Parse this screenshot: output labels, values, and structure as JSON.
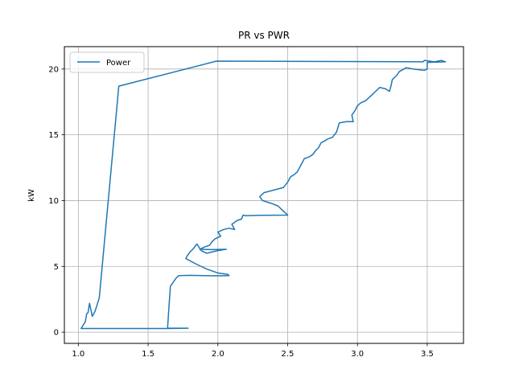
{
  "chart_data": {
    "type": "line",
    "title": "PR vs PWR",
    "xlabel": "",
    "ylabel": "kW",
    "xlim": [
      0.9,
      3.76
    ],
    "ylim": [
      -0.85,
      21.7
    ],
    "xticks": [
      1.0,
      1.5,
      2.0,
      2.5,
      3.0,
      3.5
    ],
    "yticks": [
      0,
      5,
      10,
      15,
      20
    ],
    "grid": true,
    "legend_position": "top-left",
    "series": [
      {
        "name": "Power",
        "color": "#1f77b4",
        "points": [
          [
            1.79,
            0.3
          ],
          [
            1.65,
            0.28
          ],
          [
            1.02,
            0.28
          ],
          [
            1.05,
            0.8
          ],
          [
            1.06,
            1.4
          ],
          [
            1.07,
            1.5
          ],
          [
            1.08,
            2.2
          ],
          [
            1.1,
            1.2
          ],
          [
            1.12,
            1.6
          ],
          [
            1.15,
            2.6
          ],
          [
            1.29,
            18.7
          ],
          [
            1.99,
            20.6
          ],
          [
            3.47,
            20.55
          ],
          [
            3.48,
            20.65
          ],
          [
            3.55,
            20.55
          ],
          [
            3.6,
            20.65
          ],
          [
            3.63,
            20.55
          ],
          [
            3.5,
            20.5
          ],
          [
            3.5,
            20.0
          ],
          [
            3.48,
            19.9
          ],
          [
            3.4,
            20.0
          ],
          [
            3.35,
            20.1
          ],
          [
            3.3,
            19.8
          ],
          [
            3.28,
            19.5
          ],
          [
            3.25,
            19.2
          ],
          [
            3.24,
            18.7
          ],
          [
            3.23,
            18.3
          ],
          [
            3.2,
            18.5
          ],
          [
            3.16,
            18.6
          ],
          [
            3.13,
            18.3
          ],
          [
            3.1,
            18.0
          ],
          [
            3.06,
            17.6
          ],
          [
            3.02,
            17.4
          ],
          [
            3.0,
            17.2
          ],
          [
            2.98,
            16.8
          ],
          [
            2.96,
            16.5
          ],
          [
            2.97,
            16.0
          ],
          [
            2.92,
            16.0
          ],
          [
            2.87,
            15.9
          ],
          [
            2.85,
            15.2
          ],
          [
            2.82,
            14.8
          ],
          [
            2.79,
            14.7
          ],
          [
            2.76,
            14.5
          ],
          [
            2.74,
            14.4
          ],
          [
            2.72,
            14.0
          ],
          [
            2.7,
            13.8
          ],
          [
            2.68,
            13.5
          ],
          [
            2.65,
            13.3
          ],
          [
            2.62,
            13.2
          ],
          [
            2.6,
            12.8
          ],
          [
            2.57,
            12.2
          ],
          [
            2.55,
            12.0
          ],
          [
            2.52,
            11.8
          ],
          [
            2.5,
            11.4
          ],
          [
            2.47,
            11.0
          ],
          [
            2.4,
            10.8
          ],
          [
            2.33,
            10.6
          ],
          [
            2.3,
            10.3
          ],
          [
            2.32,
            10.0
          ],
          [
            2.38,
            9.8
          ],
          [
            2.43,
            9.6
          ],
          [
            2.46,
            9.3
          ],
          [
            2.5,
            8.9
          ],
          [
            2.3,
            8.88
          ],
          [
            2.2,
            8.85
          ],
          [
            2.18,
            8.9
          ],
          [
            2.17,
            8.6
          ],
          [
            2.14,
            8.5
          ],
          [
            2.1,
            8.2
          ],
          [
            2.12,
            7.8
          ],
          [
            2.08,
            7.9
          ],
          [
            2.04,
            7.8
          ],
          [
            2.0,
            7.6
          ],
          [
            2.02,
            7.3
          ],
          [
            1.98,
            7.1
          ],
          [
            1.96,
            6.9
          ],
          [
            1.94,
            6.6
          ],
          [
            1.91,
            6.5
          ],
          [
            1.87,
            6.3
          ],
          [
            1.95,
            6.28
          ],
          [
            2.06,
            6.3
          ],
          [
            2.0,
            6.2
          ],
          [
            1.92,
            6.0
          ],
          [
            1.88,
            6.2
          ],
          [
            1.85,
            6.7
          ],
          [
            1.82,
            6.3
          ],
          [
            1.8,
            6.1
          ],
          [
            1.78,
            5.8
          ],
          [
            1.77,
            5.6
          ],
          [
            1.84,
            5.2
          ],
          [
            1.92,
            4.8
          ],
          [
            2.0,
            4.5
          ],
          [
            2.07,
            4.4
          ],
          [
            2.08,
            4.3
          ],
          [
            2.0,
            4.28
          ],
          [
            1.9,
            4.3
          ],
          [
            1.8,
            4.32
          ],
          [
            1.72,
            4.3
          ],
          [
            1.7,
            4.1
          ],
          [
            1.68,
            3.8
          ],
          [
            1.66,
            3.5
          ],
          [
            1.65,
            2.0
          ],
          [
            1.64,
            0.4
          ],
          [
            1.64,
            0.3
          ],
          [
            1.79,
            0.3
          ]
        ]
      }
    ]
  }
}
